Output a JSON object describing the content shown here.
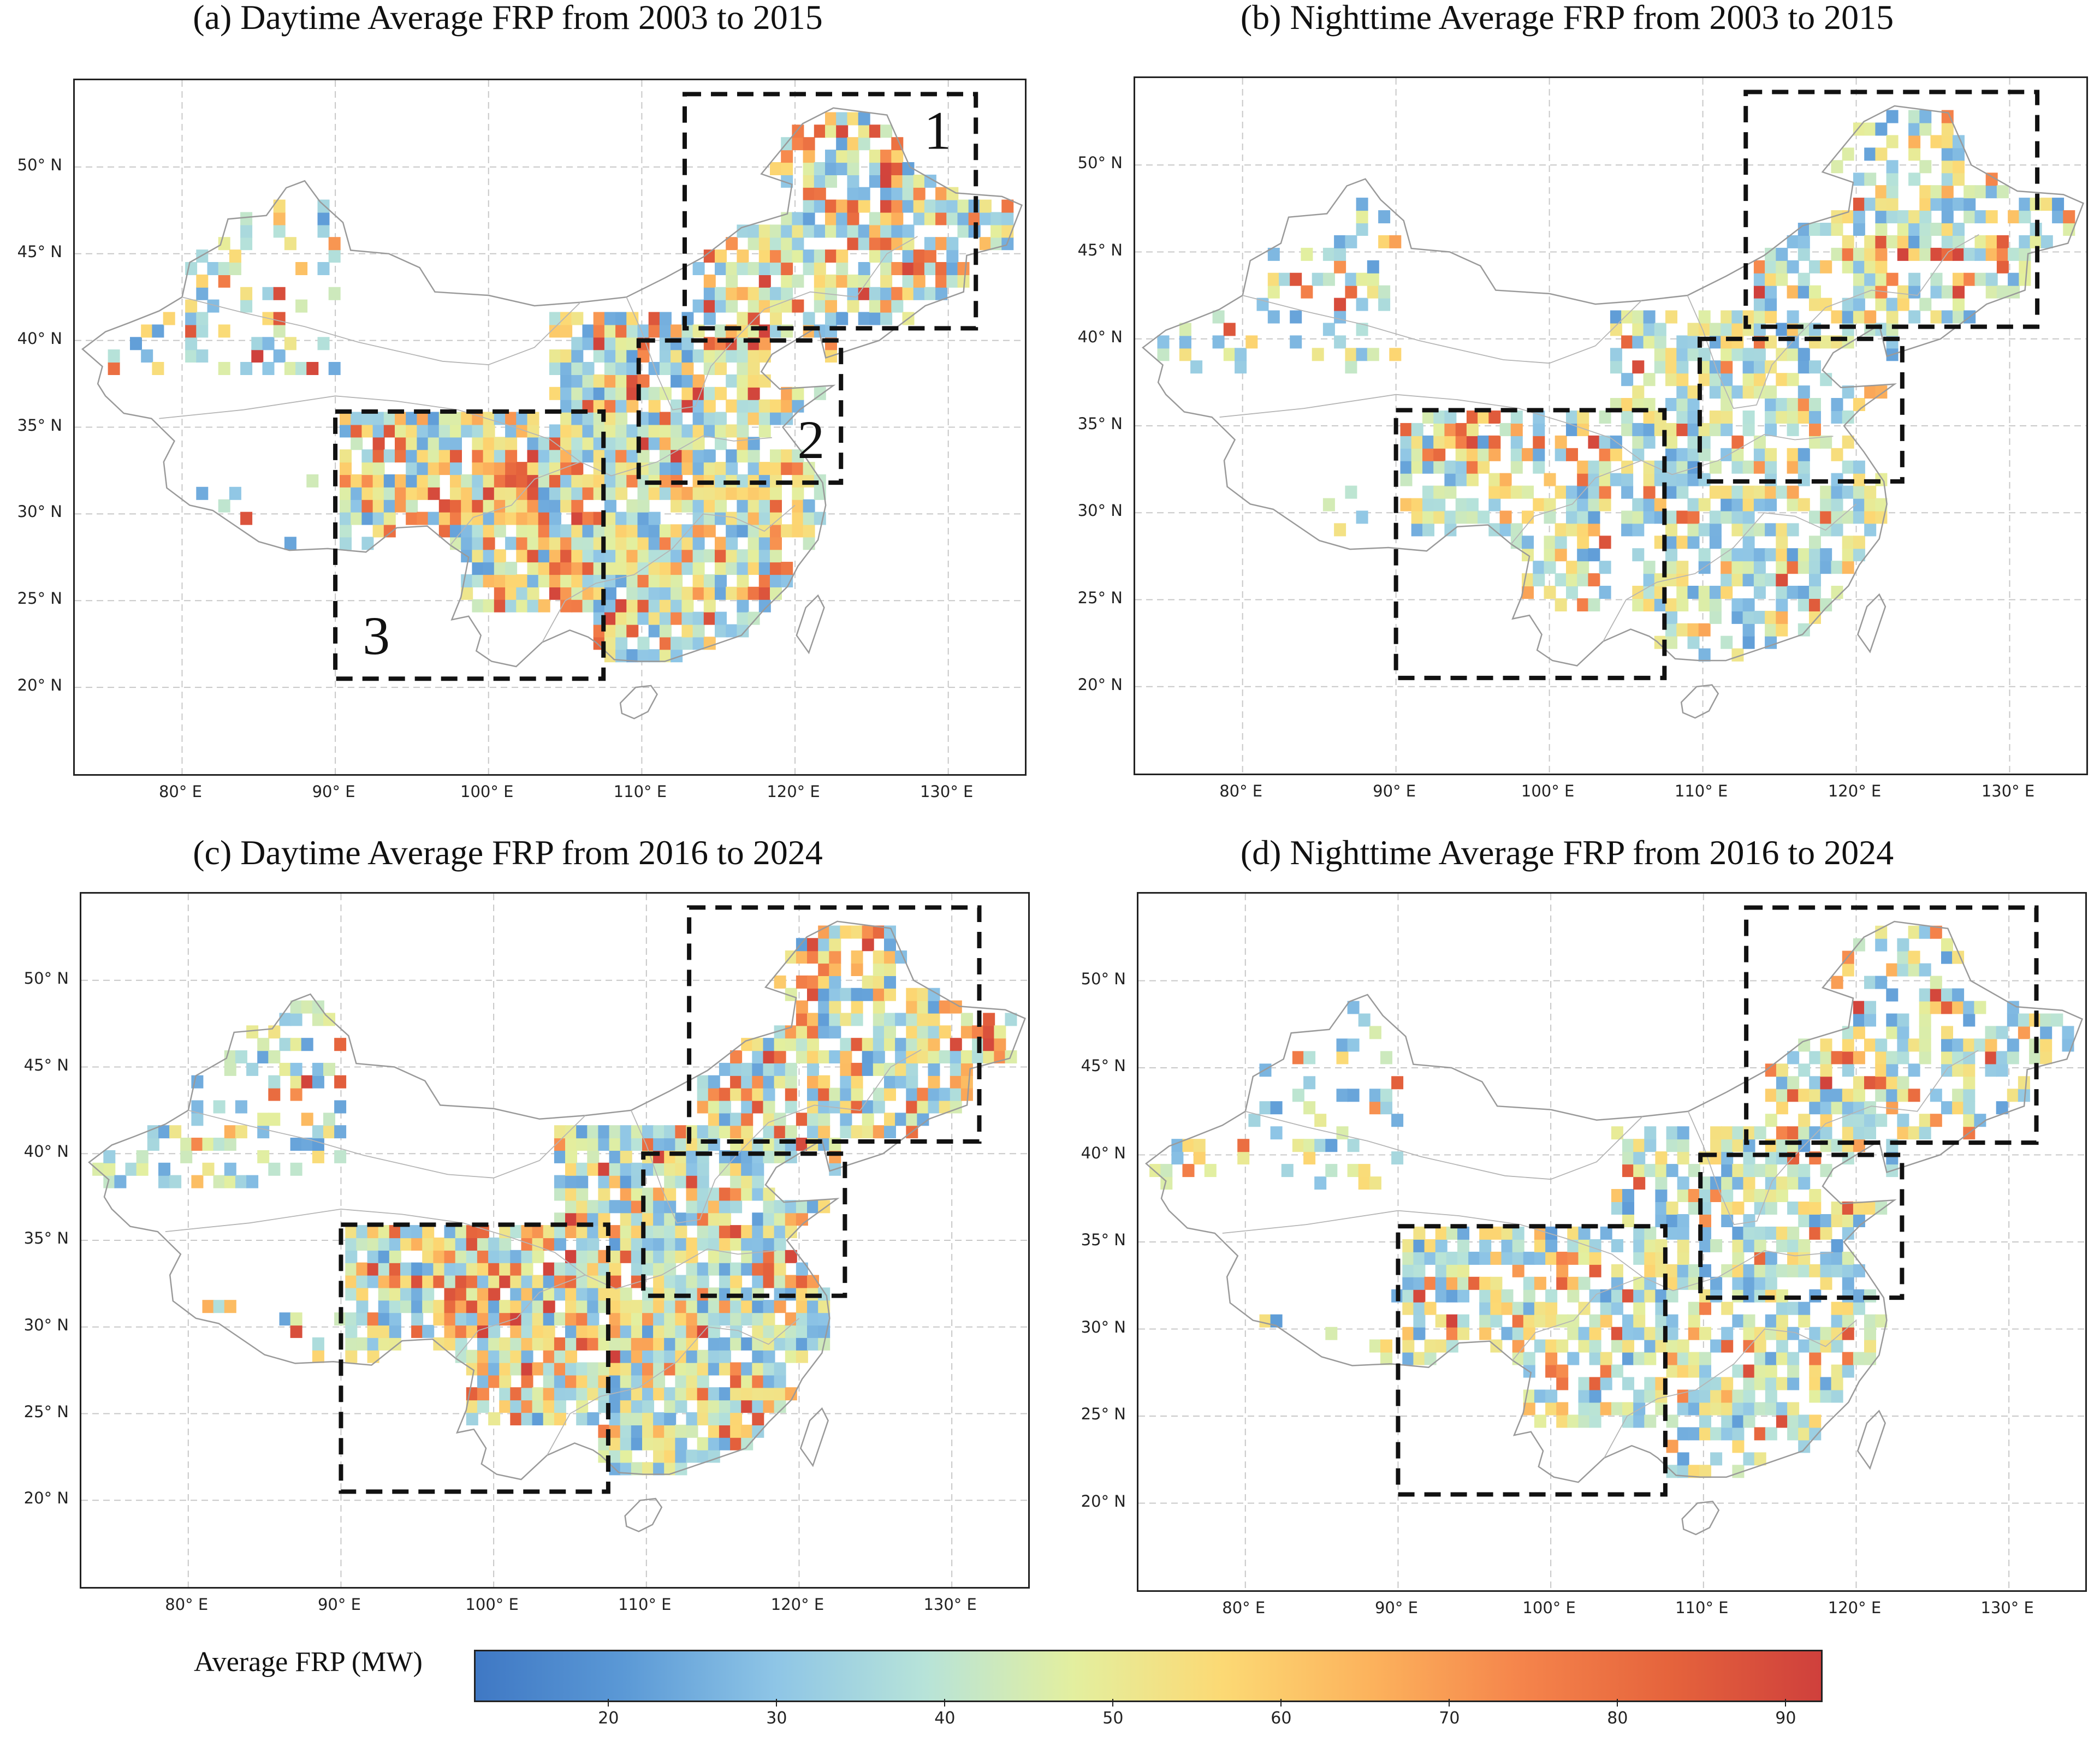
{
  "panels": [
    {
      "id": "a",
      "title": "(a) Daytime Average FRP from 2003 to 2015",
      "bias": 1.0,
      "density": 0.92,
      "seed": 11,
      "region_numbers": [
        "1",
        "2",
        "3"
      ]
    },
    {
      "id": "b",
      "title": "(b) Nighttime Average FRP from 2003 to 2015",
      "bias": 0.55,
      "density": 0.7,
      "seed": 23,
      "region_numbers": []
    },
    {
      "id": "c",
      "title": "(c) Daytime Average FRP from 2016 to 2024",
      "bias": 0.8,
      "density": 0.95,
      "seed": 37,
      "region_numbers": []
    },
    {
      "id": "d",
      "title": "(d) Nighttime Average FRP from 2016 to 2024",
      "bias": 0.5,
      "density": 0.72,
      "seed": 51,
      "region_numbers": []
    }
  ],
  "axes": {
    "lon_range": [
      73,
      135
    ],
    "lat_range": [
      15,
      55
    ],
    "x_ticks": [
      "80° E",
      "90° E",
      "100° E",
      "110° E",
      "120° E",
      "130° E"
    ],
    "x_tick_values": [
      80,
      90,
      100,
      110,
      120,
      130
    ],
    "y_ticks": [
      "50° N",
      "45° N",
      "40° N",
      "35° N",
      "30° N",
      "25° N",
      "20° N"
    ],
    "y_tick_values": [
      50,
      45,
      40,
      35,
      30,
      25,
      20
    ],
    "grid": "dashed"
  },
  "regions": [
    {
      "id": "1",
      "lon": [
        112.8,
        131.8
      ],
      "lat": [
        40.7,
        54.2
      ]
    },
    {
      "id": "2",
      "lon": [
        109.8,
        123.0
      ],
      "lat": [
        31.8,
        40.0
      ]
    },
    {
      "id": "3",
      "lon": [
        90.0,
        107.5
      ],
      "lat": [
        20.5,
        35.9
      ]
    }
  ],
  "colorbar": {
    "label": "Average FRP (MW)",
    "min": 12,
    "max": 92,
    "ticks": [
      "20",
      "30",
      "40",
      "50",
      "60",
      "70",
      "80",
      "90"
    ],
    "tick_values": [
      20,
      30,
      40,
      50,
      60,
      70,
      80,
      90
    ],
    "colors": [
      "#3f78c4",
      "#5b99d6",
      "#8ec5e6",
      "#b7e3d9",
      "#e3ef9f",
      "#fcd974",
      "#fcb25c",
      "#f5844b",
      "#e5633c",
      "#cf403c"
    ]
  }
}
